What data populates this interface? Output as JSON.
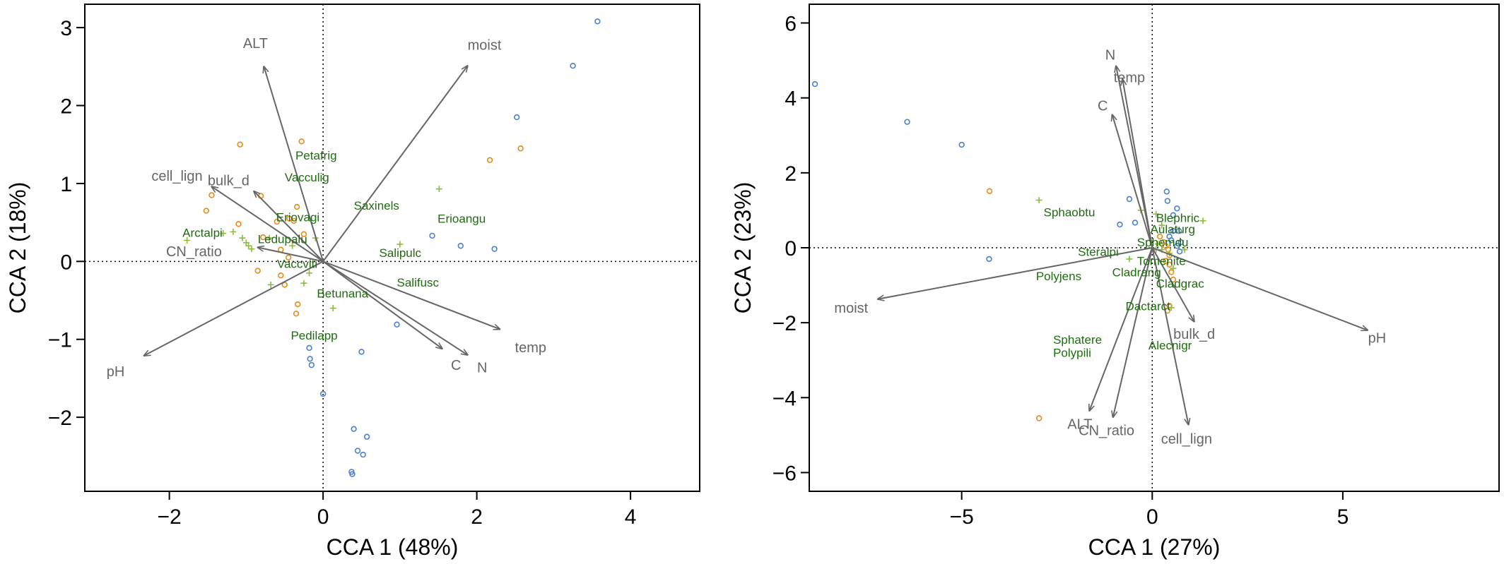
{
  "chart_data": [
    {
      "type": "scatter",
      "subtype": "CCA biplot",
      "xlabel": "CCA 1 (48%)",
      "ylabel": "CCA 2 (18%)",
      "xlim": [
        -3.1,
        4.9
      ],
      "ylim": [
        -2.95,
        3.3
      ],
      "xticks": [
        -2,
        0,
        2,
        4
      ],
      "xtick_labels": [
        "−2",
        "0",
        "2",
        "4"
      ],
      "yticks": [
        -2,
        -1,
        0,
        1,
        2,
        3
      ],
      "ytick_labels": [
        "−2",
        "−1",
        "0",
        "1",
        "2",
        "3"
      ],
      "reference_lines": {
        "x": 0,
        "y": 0
      },
      "colors": {
        "blue": "#4a7fd6",
        "orange": "#e8891a",
        "green": "#8dbb3c",
        "arrow": "#666666",
        "species_label": "#1f6b0f"
      },
      "blue_circles": [
        [
          3.57,
          3.08
        ],
        [
          3.25,
          2.51
        ],
        [
          2.52,
          1.85
        ],
        [
          1.42,
          0.33
        ],
        [
          1.79,
          0.2
        ],
        [
          2.23,
          0.16
        ],
        [
          0.96,
          -0.81
        ],
        [
          0.5,
          -1.16
        ],
        [
          -0.18,
          -1.11
        ],
        [
          -0.17,
          -1.25
        ],
        [
          -0.15,
          -1.33
        ],
        [
          0.0,
          -1.7
        ],
        [
          0.4,
          -2.15
        ],
        [
          0.57,
          -2.25
        ],
        [
          0.45,
          -2.43
        ],
        [
          0.52,
          -2.48
        ],
        [
          0.37,
          -2.7
        ],
        [
          0.38,
          -2.73
        ]
      ],
      "orange_circles": [
        [
          -1.08,
          1.5
        ],
        [
          -0.28,
          1.54
        ],
        [
          2.17,
          1.3
        ],
        [
          2.57,
          1.45
        ],
        [
          -1.45,
          0.85
        ],
        [
          -1.52,
          0.65
        ],
        [
          -0.81,
          0.84
        ],
        [
          -0.34,
          0.7
        ],
        [
          -0.44,
          0.55
        ],
        [
          -0.38,
          0.52
        ],
        [
          -0.25,
          0.35
        ],
        [
          -0.6,
          0.51
        ],
        [
          -1.1,
          0.48
        ],
        [
          -0.78,
          0.31
        ],
        [
          -0.55,
          0.15
        ],
        [
          -0.45,
          0.05
        ],
        [
          -0.85,
          -0.12
        ],
        [
          -0.55,
          -0.18
        ],
        [
          -0.5,
          -0.3
        ],
        [
          -0.33,
          -0.55
        ],
        [
          -0.35,
          -0.67
        ]
      ],
      "green_crosses": [
        [
          1.51,
          0.93
        ],
        [
          -1.77,
          0.27
        ],
        [
          -1.17,
          0.38
        ],
        [
          -1.3,
          0.36
        ],
        [
          -1.05,
          0.3
        ],
        [
          -1.0,
          0.24
        ],
        [
          -0.97,
          0.2
        ],
        [
          -0.93,
          0.16
        ],
        [
          -0.7,
          0.3
        ],
        [
          -0.4,
          0.2
        ],
        [
          -0.18,
          -0.15
        ],
        [
          -0.25,
          -0.28
        ],
        [
          -0.68,
          -0.3
        ],
        [
          0.13,
          -0.6
        ],
        [
          1.0,
          0.22
        ],
        [
          -0.1,
          0.3
        ]
      ],
      "arrows": [
        {
          "label": "ALT",
          "x": -0.77,
          "y": 2.5
        },
        {
          "label": "moist",
          "x": 1.88,
          "y": 2.51
        },
        {
          "label": "cell_lign",
          "x": -1.45,
          "y": 0.96
        },
        {
          "label": "bulk_d",
          "x": -0.9,
          "y": 0.9
        },
        {
          "label": "CN_ratio",
          "x": -0.85,
          "y": 0.18
        },
        {
          "label": "pH",
          "x": -2.33,
          "y": -1.21
        },
        {
          "label": "temp",
          "x": 2.3,
          "y": -0.87
        },
        {
          "label": "C",
          "x": 1.55,
          "y": -1.12
        },
        {
          "label": "N",
          "x": 1.88,
          "y": -1.2
        }
      ],
      "arrow_label_positions": [
        {
          "label": "ALT",
          "x": -0.88,
          "y": 2.8
        },
        {
          "label": "moist",
          "x": 2.1,
          "y": 2.78
        },
        {
          "label": "cell_lign",
          "x": -1.9,
          "y": 1.1
        },
        {
          "label": "bulk_d",
          "x": -1.23,
          "y": 1.04
        },
        {
          "label": "CN_ratio",
          "x": -1.68,
          "y": 0.13
        },
        {
          "label": "pH",
          "x": -2.7,
          "y": -1.41
        },
        {
          "label": "temp",
          "x": 2.7,
          "y": -1.1
        },
        {
          "label": "C",
          "x": 1.73,
          "y": -1.33
        },
        {
          "label": "N",
          "x": 2.07,
          "y": -1.36
        }
      ],
      "species": [
        {
          "label": "Petafrig",
          "x": -0.36,
          "y": 1.36
        },
        {
          "label": "Vacculig",
          "x": -0.5,
          "y": 1.08
        },
        {
          "label": "Saxinels",
          "x": 0.4,
          "y": 0.72
        },
        {
          "label": "Erioangu",
          "x": 1.49,
          "y": 0.55
        },
        {
          "label": "Eriovagi",
          "x": -0.61,
          "y": 0.57
        },
        {
          "label": "Arctalpi",
          "x": -1.83,
          "y": 0.37
        },
        {
          "label": "Ledupalu",
          "x": -0.85,
          "y": 0.29
        },
        {
          "label": "Salipulc",
          "x": 0.73,
          "y": 0.11
        },
        {
          "label": "Vaccviti",
          "x": -0.6,
          "y": -0.03
        },
        {
          "label": "Salifusc",
          "x": 0.96,
          "y": -0.27
        },
        {
          "label": "Betunana",
          "x": -0.08,
          "y": -0.41
        },
        {
          "label": "Pedilapp",
          "x": -0.42,
          "y": -0.95
        }
      ]
    },
    {
      "type": "scatter",
      "subtype": "CCA biplot",
      "xlabel": "CCA 1 (27%)",
      "ylabel": "CCA 2 (23%)",
      "xlim": [
        -9.0,
        9.1
      ],
      "ylim": [
        -6.5,
        6.5
      ],
      "xticks": [
        -5,
        0,
        5
      ],
      "xtick_labels": [
        "−5",
        "0",
        "5"
      ],
      "yticks": [
        -6,
        -4,
        -2,
        0,
        2,
        4,
        6
      ],
      "ytick_labels": [
        "−6",
        "−4",
        "−2",
        "0",
        "2",
        "4",
        "6"
      ],
      "reference_lines": {
        "x": 0,
        "y": 0
      },
      "colors": {
        "blue": "#4a7fd6",
        "orange": "#e8891a",
        "green": "#8dbb3c",
        "arrow": "#666666",
        "species_label": "#1f6b0f"
      },
      "blue_circles": [
        [
          -8.85,
          4.37
        ],
        [
          -6.43,
          3.36
        ],
        [
          -5.0,
          2.75
        ],
        [
          -4.28,
          -0.3
        ],
        [
          -0.6,
          1.3
        ],
        [
          -0.85,
          0.62
        ],
        [
          -0.45,
          0.67
        ],
        [
          0.38,
          1.5
        ],
        [
          0.4,
          1.25
        ],
        [
          0.55,
          0.87
        ],
        [
          0.65,
          1.05
        ],
        [
          0.55,
          0.45
        ],
        [
          0.7,
          0.45
        ],
        [
          0.45,
          0.3
        ],
        [
          0.5,
          0.2
        ],
        [
          0.75,
          0.15
        ],
        [
          0.65,
          0.05
        ],
        [
          0.72,
          -0.1
        ]
      ],
      "orange_circles": [
        [
          -4.27,
          1.51
        ],
        [
          -2.97,
          -4.55
        ],
        [
          0.2,
          0.3
        ],
        [
          0.3,
          0.15
        ],
        [
          0.35,
          0.05
        ],
        [
          0.42,
          -0.05
        ],
        [
          0.45,
          -0.2
        ],
        [
          0.35,
          -0.35
        ],
        [
          0.45,
          -0.45
        ],
        [
          0.5,
          -0.65
        ],
        [
          0.55,
          -0.85
        ],
        [
          0.45,
          -1.55
        ],
        [
          0.4,
          -1.68
        ]
      ],
      "green_crosses": [
        [
          -2.97,
          1.27
        ],
        [
          -0.3,
          1.0
        ],
        [
          0.1,
          0.9
        ],
        [
          0.25,
          0.6
        ],
        [
          1.33,
          0.72
        ],
        [
          0.15,
          0.1
        ],
        [
          0.25,
          -0.05
        ],
        [
          -0.05,
          0.2
        ],
        [
          -0.6,
          -0.3
        ],
        [
          0.1,
          -0.05
        ],
        [
          0.45,
          -0.15
        ],
        [
          0.85,
          -0.05
        ],
        [
          0.55,
          -0.55
        ],
        [
          0.5,
          -1.6
        ]
      ],
      "arrows": [
        {
          "label": "N",
          "x": -0.95,
          "y": 4.85
        },
        {
          "label": "temp",
          "x": -0.78,
          "y": 4.5
        },
        {
          "label": "C",
          "x": -1.05,
          "y": 3.55
        },
        {
          "label": "moist",
          "x": -7.2,
          "y": -1.37
        },
        {
          "label": "pH",
          "x": 5.65,
          "y": -2.2
        },
        {
          "label": "bulk_d",
          "x": 1.1,
          "y": -1.97
        },
        {
          "label": "ALT",
          "x": -1.65,
          "y": -4.35
        },
        {
          "label": "CN_ratio",
          "x": -1.03,
          "y": -4.52
        },
        {
          "label": "cell_lign",
          "x": 0.95,
          "y": -4.72
        }
      ],
      "arrow_label_positions": [
        {
          "label": "N",
          "x": -1.1,
          "y": 5.15
        },
        {
          "label": "temp",
          "x": -0.6,
          "y": 4.55
        },
        {
          "label": "C",
          "x": -1.3,
          "y": 3.8
        },
        {
          "label": "moist",
          "x": -7.9,
          "y": -1.6
        },
        {
          "label": "pH",
          "x": 5.9,
          "y": -2.4
        },
        {
          "label": "bulk_d",
          "x": 1.1,
          "y": -2.3
        },
        {
          "label": "ALT",
          "x": -1.9,
          "y": -4.7
        },
        {
          "label": "CN_ratio",
          "x": -1.2,
          "y": -4.87
        },
        {
          "label": "cell_lign",
          "x": 0.9,
          "y": -5.1
        }
      ],
      "species": [
        {
          "label": "Sphaobtu",
          "x": -2.85,
          "y": 0.95
        },
        {
          "label": "Blephric",
          "x": 0.1,
          "y": 0.8
        },
        {
          "label": "Aulaturg",
          "x": -0.05,
          "y": 0.5
        },
        {
          "label": "Sphemdu",
          "x": -0.4,
          "y": 0.15
        },
        {
          "label": "Steralpi",
          "x": -1.95,
          "y": -0.1
        },
        {
          "label": "Tomenite",
          "x": -0.4,
          "y": -0.35
        },
        {
          "label": "Polyjens",
          "x": -3.05,
          "y": -0.75
        },
        {
          "label": "Cladrang",
          "x": -1.05,
          "y": -0.65
        },
        {
          "label": "Cladgrac",
          "x": 0.1,
          "y": -0.95
        },
        {
          "label": "Dactarct",
          "x": -0.7,
          "y": -1.55
        },
        {
          "label": "Sphatere",
          "x": -2.6,
          "y": -2.45
        },
        {
          "label": "Alecnigr",
          "x": -0.1,
          "y": -2.6
        },
        {
          "label": "Polypili",
          "x": -2.6,
          "y": -2.8
        }
      ]
    }
  ]
}
